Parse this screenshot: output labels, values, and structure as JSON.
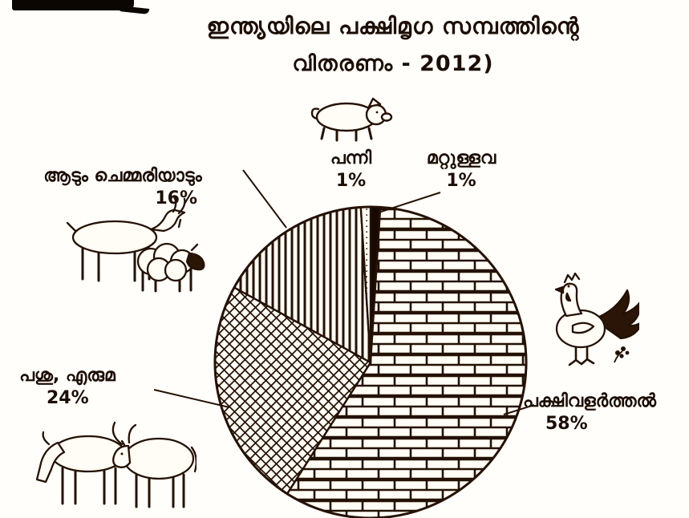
{
  "title": {
    "line1": "ഇന്ത്യയിലെ പക്ഷിമൃഗ സമ്പത്തിന്റെ",
    "line2": "വിതരണം - 2012)"
  },
  "chart_data": {
    "type": "pie",
    "title": "ഇന്ത്യയിലെ പക്ഷിമൃഗ സമ്പത്തിന്റെ വിതരണം - 2012",
    "start_angle_deg": 0,
    "direction": "clockwise",
    "slices": [
      {
        "label": "മറ്റുള്ളവ",
        "value": 1,
        "pattern": "solid-black"
      },
      {
        "label": "പക്ഷിവളർത്തൽ",
        "value": 58,
        "pattern": "brick"
      },
      {
        "label": "പശു, എരുമ",
        "value": 24,
        "pattern": "crosshatch"
      },
      {
        "label": "ആടും ചെമ്മരിയാടും",
        "value": 16,
        "pattern": "vertical-lines"
      },
      {
        "label": "പന്നി",
        "value": 1,
        "pattern": "dotted"
      }
    ]
  },
  "labels": {
    "pig": {
      "name": "പന്നി",
      "pct": "1%"
    },
    "others": {
      "name": "മറ്റുള്ളവ",
      "pct": "1%"
    },
    "goat_sheep": {
      "name": "ആടും ചെമ്മരിയാടും",
      "pct": "16%"
    },
    "cow_buffalo": {
      "name": "പശു, എരുമ",
      "pct": "24%"
    },
    "poultry": {
      "name": "പക്ഷിവളർത്തൽ",
      "pct": "58%"
    }
  },
  "illustrations": {
    "pig": "pig line drawing",
    "goat_sheep": "goat and sheep line drawing",
    "cattle": "cow and buffalo line drawing",
    "rooster": "rooster line drawing"
  },
  "colors": {
    "ink": "#241103",
    "paper": "#fffefa",
    "slice_black": "#170902"
  }
}
